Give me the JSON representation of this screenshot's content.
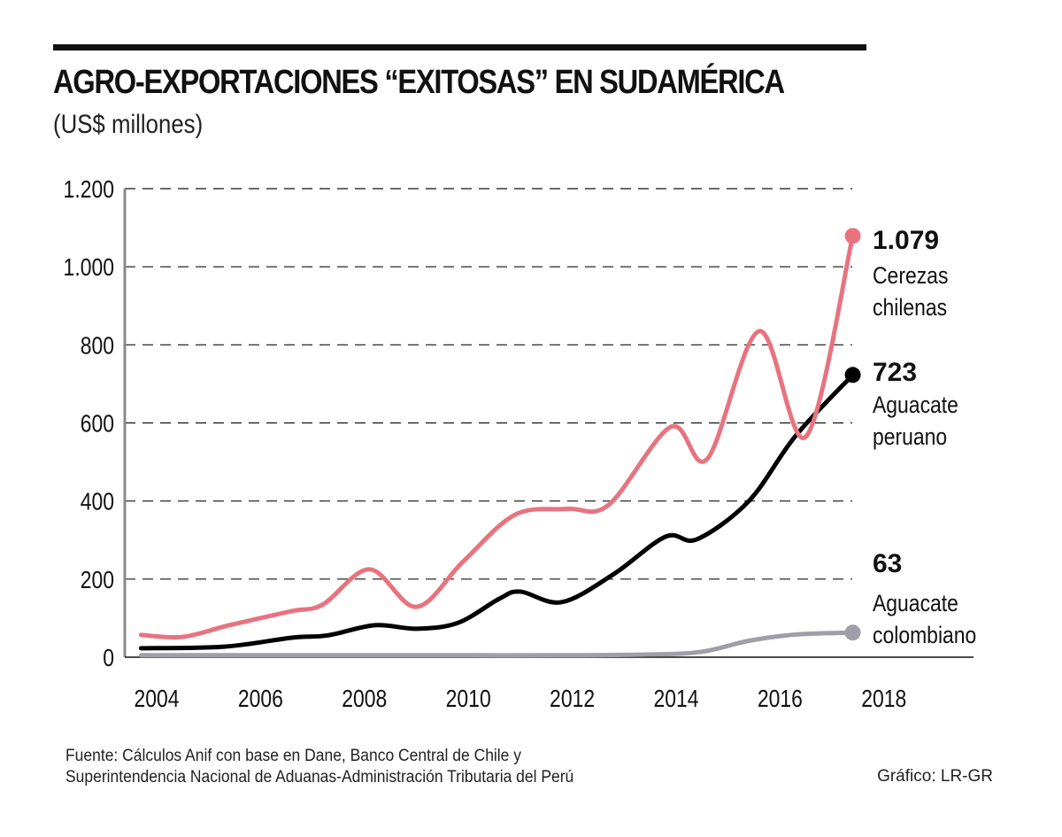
{
  "header": {
    "title": "AGRO-EXPORTACIONES “EXITOSAS” EN SUDAMÉRICA",
    "subtitle": "(US$ millones)"
  },
  "footer": {
    "source_line1": "Fuente: Cálculos Anif con base en Dane, Banco Central de Chile y",
    "source_line2": "Superintendencia Nacional de Aduanas-Administración Tributaria del Perú",
    "credit": "Gráfico: LR-GR"
  },
  "chart_data": {
    "type": "line",
    "title": "AGRO-EXPORTACIONES “EXITOSAS” EN SUDAMÉRICA",
    "subtitle": "(US$ millones)",
    "xlabel": "",
    "ylabel": "US$ millones",
    "xlim": [
      2003.4,
      2019.2
    ],
    "ylim": [
      0,
      1200
    ],
    "grid": "horizontal-dashed",
    "x_ticks": [
      "2004",
      "2006",
      "2008",
      "2010",
      "2012",
      "2014",
      "2016",
      "2018"
    ],
    "x_tick_values": [
      2004,
      2006,
      2008,
      2010,
      2012,
      2014,
      2016,
      2018
    ],
    "y_ticks": [
      "0",
      "200",
      "400",
      "600",
      "800",
      "1.000",
      "1.200"
    ],
    "y_tick_values": [
      0,
      200,
      400,
      600,
      800,
      1000,
      1200
    ],
    "legend": "inline-right",
    "series": [
      {
        "name": "Cerezas chilenas",
        "label_lines": [
          "Cerezas",
          "chilenas"
        ],
        "end_value_label": "1.079",
        "color": "#e8737f",
        "points": [
          [
            2003.7,
            57
          ],
          [
            2004.5,
            52
          ],
          [
            2005.4,
            82
          ],
          [
            2006.6,
            118
          ],
          [
            2007.2,
            135
          ],
          [
            2008.1,
            225
          ],
          [
            2009.0,
            129
          ],
          [
            2009.9,
            245
          ],
          [
            2010.9,
            365
          ],
          [
            2011.9,
            380
          ],
          [
            2012.7,
            390
          ],
          [
            2013.9,
            590
          ],
          [
            2014.6,
            508
          ],
          [
            2015.6,
            835
          ],
          [
            2016.5,
            565
          ],
          [
            2017.4,
            1079
          ]
        ]
      },
      {
        "name": "Aguacate peruano",
        "label_lines": [
          "Aguacate",
          "peruano"
        ],
        "end_value_label": "723",
        "color": "#000000",
        "points": [
          [
            2003.7,
            23
          ],
          [
            2005.3,
            27
          ],
          [
            2006.6,
            50
          ],
          [
            2007.3,
            56
          ],
          [
            2008.2,
            82
          ],
          [
            2009.0,
            73
          ],
          [
            2009.8,
            88
          ],
          [
            2010.6,
            150
          ],
          [
            2011.0,
            168
          ],
          [
            2011.8,
            141
          ],
          [
            2012.8,
            213
          ],
          [
            2013.8,
            309
          ],
          [
            2014.4,
            302
          ],
          [
            2015.4,
            400
          ],
          [
            2016.3,
            567
          ],
          [
            2017.4,
            723
          ]
        ]
      },
      {
        "name": "Aguacate colombiano",
        "label_lines": [
          "Aguacate",
          "colombiano"
        ],
        "end_value_label": "63",
        "color": "#a09ea6",
        "points": [
          [
            2003.7,
            5
          ],
          [
            2006.0,
            5
          ],
          [
            2008.0,
            5
          ],
          [
            2010.0,
            5
          ],
          [
            2012.0,
            5
          ],
          [
            2013.5,
            7
          ],
          [
            2014.5,
            14
          ],
          [
            2015.4,
            42
          ],
          [
            2016.3,
            58
          ],
          [
            2017.4,
            63
          ]
        ]
      }
    ]
  }
}
